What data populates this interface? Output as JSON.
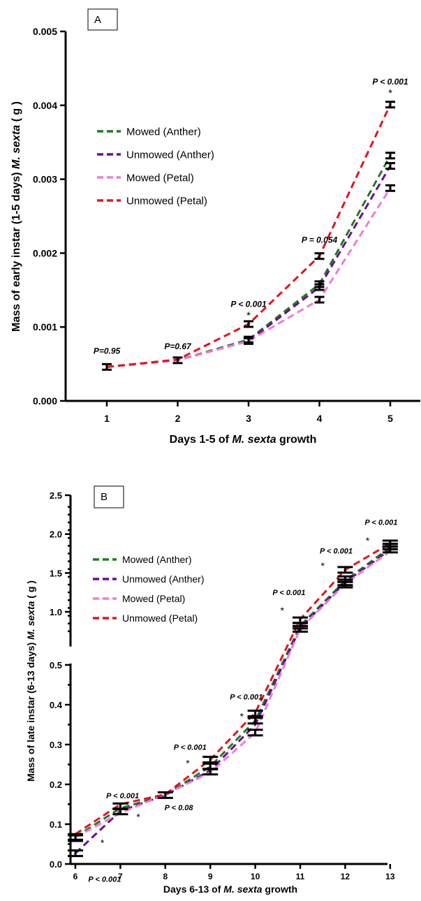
{
  "chart_data": [
    {
      "type": "line",
      "panel_label": "A",
      "xlabel_prefix": "Days 1-5 of ",
      "xlabel_species": "M. sexta",
      "xlabel_suffix": " growth",
      "ylabel_prefix": "Mass of early instar (1-5 days) ",
      "ylabel_species": "M. sexta",
      "ylabel_suffix": " ( g )",
      "x": [
        1,
        2,
        3,
        4,
        5
      ],
      "xticks": [
        "1",
        "2",
        "3",
        "4",
        "5"
      ],
      "xlim": [
        0.5,
        5.5
      ],
      "ylim": [
        0,
        0.005
      ],
      "yticks": [
        "0.000",
        "0.001",
        "0.002",
        "0.003",
        "0.004",
        "0.005"
      ],
      "ytick_values": [
        0,
        0.001,
        0.002,
        0.003,
        0.004,
        0.005
      ],
      "grid": false,
      "legend_position": "upper-left",
      "series": [
        {
          "name": "Mowed (Anther)",
          "color": "#1e7b1e",
          "values": [
            0.00046,
            0.00055,
            0.00083,
            0.00158,
            0.00332
          ]
        },
        {
          "name": "Unmowed (Anther)",
          "color": "#6a0d91",
          "values": [
            0.00046,
            0.00055,
            0.00081,
            0.00154,
            0.00318
          ]
        },
        {
          "name": "Mowed (Petal)",
          "color": "#f07ad8",
          "values": [
            0.00046,
            0.00055,
            0.00081,
            0.00137,
            0.00288
          ]
        },
        {
          "name": "Unmowed (Petal)",
          "color": "#e8121b",
          "values": [
            0.00046,
            0.00056,
            0.00104,
            0.00196,
            0.00401
          ]
        }
      ],
      "error_bars": [
        {
          "x": 1,
          "values": [
            0.00046
          ]
        },
        {
          "x": 2,
          "values": [
            0.00055
          ]
        },
        {
          "x": 3,
          "values": [
            0.00104,
            0.00083,
            0.00081
          ]
        },
        {
          "x": 4,
          "values": [
            0.00196,
            0.00158,
            0.00154,
            0.00137
          ]
        },
        {
          "x": 5,
          "values": [
            0.00401,
            0.00332,
            0.00318,
            0.00288
          ]
        }
      ],
      "annotations": [
        {
          "text": "P=0.95",
          "x": 1,
          "y": 0.00064
        },
        {
          "text": "P=0.67",
          "x": 2,
          "y": 0.0007
        },
        {
          "text": "P < 0.001",
          "x": 3,
          "y": 0.00127
        },
        {
          "text": "P = 0.054",
          "x": 4,
          "y": 0.00214
        },
        {
          "text": "P < 0.001",
          "x": 5,
          "y": 0.00428
        }
      ],
      "stars": [
        {
          "text": "*",
          "x": 3,
          "y": 0.00111
        },
        {
          "text": "*",
          "x": 5,
          "y": 0.00412
        }
      ]
    },
    {
      "type": "line",
      "panel_label": "B",
      "xlabel_prefix": "Days 6-13 of ",
      "xlabel_species": "M. sexta",
      "xlabel_suffix": " growth",
      "ylabel_prefix": "Mass of late instar (6-13 days) ",
      "ylabel_species": "M. sexta",
      "ylabel_suffix": " ( g )",
      "x": [
        6,
        7,
        8,
        9,
        10,
        11,
        12,
        13
      ],
      "xticks": [
        "6",
        "7",
        "8",
        "9",
        "10",
        "11",
        "12",
        "13"
      ],
      "xlim": [
        6,
        13.3
      ],
      "y_axis_break": true,
      "ylim_lower": [
        0,
        0.5
      ],
      "ylim_upper": [
        0.5,
        2.5
      ],
      "yticks_lower": [
        "0.0",
        "0.1",
        "0.2",
        "0.3",
        "0.4",
        "0.5"
      ],
      "ytick_values_lower": [
        0,
        0.1,
        0.2,
        0.3,
        0.4,
        0.5
      ],
      "yticks_upper": [
        "1.0",
        "1.5",
        "2.0",
        "2.5"
      ],
      "ytick_values_upper": [
        1.0,
        1.5,
        2.0,
        2.5
      ],
      "grid": false,
      "legend_position": "upper-left",
      "series": [
        {
          "name": "Mowed (Anther)",
          "color": "#1e7b1e",
          "values": [
            0.068,
            0.14,
            0.173,
            0.245,
            0.36,
            0.87,
            1.4,
            1.83
          ]
        },
        {
          "name": "Unmowed (Anther)",
          "color": "#6a0d91",
          "values": [
            0.027,
            0.133,
            0.173,
            0.235,
            0.35,
            0.85,
            1.38,
            1.8
          ]
        },
        {
          "name": "Mowed (Petal)",
          "color": "#f07ad8",
          "values": [
            0.067,
            0.128,
            0.175,
            0.23,
            0.33,
            0.84,
            1.36,
            1.78
          ]
        },
        {
          "name": "Unmowed (Petal)",
          "color": "#e8121b",
          "values": [
            0.075,
            0.15,
            0.175,
            0.262,
            0.38,
            0.93,
            1.54,
            1.88
          ]
        }
      ],
      "error_bars": [
        {
          "x": 6,
          "values": [
            0.068,
            0.065,
            0.027
          ]
        },
        {
          "x": 7,
          "values": [
            0.145,
            0.132
          ]
        },
        {
          "x": 8,
          "values": [
            0.173
          ]
        },
        {
          "x": 9,
          "values": [
            0.262,
            0.245,
            0.232
          ]
        },
        {
          "x": 10,
          "values": [
            0.378,
            0.36,
            0.33
          ]
        },
        {
          "x": 11,
          "values": [
            0.92,
            0.87,
            0.84
          ]
        },
        {
          "x": 12,
          "values": [
            1.54,
            1.42,
            1.38,
            1.35
          ]
        },
        {
          "x": 13,
          "values": [
            1.88,
            1.84,
            1.8
          ]
        }
      ],
      "annotations": [
        {
          "text": "P < 0.001",
          "x": 6.65,
          "y": -0.045
        },
        {
          "text": "P < 0.001",
          "x": 7.05,
          "y": 0.165
        },
        {
          "text": "P < 0.08",
          "x": 8.3,
          "y": 0.135
        },
        {
          "text": "P < 0.001",
          "x": 8.55,
          "y": 0.287
        },
        {
          "text": "P < 0.001",
          "x": 9.8,
          "y": 0.413
        },
        {
          "text": "P < 0.001",
          "x": 10.75,
          "y": 1.215
        },
        {
          "text": "P < 0.001",
          "x": 11.8,
          "y": 1.75
        },
        {
          "text": "P < 0.001",
          "x": 12.8,
          "y": 2.12
        }
      ],
      "stars": [
        {
          "text": "*",
          "x": 6.6,
          "y": 0.045
        },
        {
          "text": "*",
          "x": 7.4,
          "y": 0.11
        },
        {
          "text": "*",
          "x": 8.5,
          "y": 0.245
        },
        {
          "text": "*",
          "x": 9.7,
          "y": 0.362
        },
        {
          "text": "*",
          "x": 10.6,
          "y": 0.98
        },
        {
          "text": "*",
          "x": 11.5,
          "y": 1.55
        },
        {
          "text": "*",
          "x": 12.5,
          "y": 1.87
        }
      ]
    }
  ]
}
